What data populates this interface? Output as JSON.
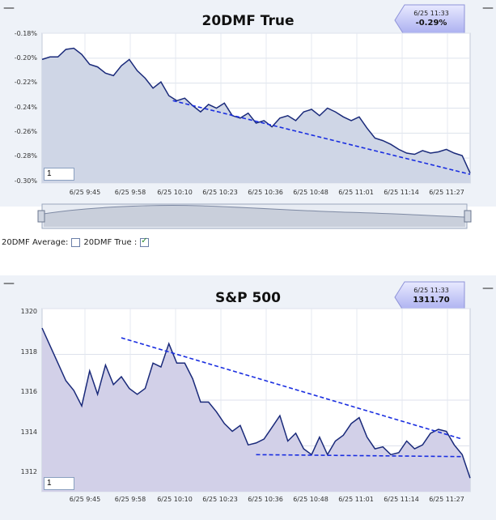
{
  "charts": [
    {
      "title": "20DMF True",
      "callout_time": "6/25 11:33",
      "callout_value": "-0.29%",
      "input_value": "1",
      "y_ticks": [
        "-0.18%",
        "-0.20%",
        "-0.22%",
        "-0.24%",
        "-0.26%",
        "-0.28%",
        "-0.30%"
      ],
      "x_ticks": [
        "6/25 9:45",
        "6/25 9:58",
        "6/25 10:10",
        "6/25 10:23",
        "6/25 10:36",
        "6/25 10:48",
        "6/25 11:01",
        "6/25 11:14",
        "6/25 11:27"
      ]
    },
    {
      "title": "S&P 500",
      "callout_time": "6/25 11:33",
      "callout_value": "1311.70",
      "input_value": "1",
      "y_ticks": [
        "1320",
        "1318",
        "1316",
        "1314",
        "1312"
      ],
      "x_ticks": [
        "6/25 9:45",
        "6/25 9:58",
        "6/25 10:10",
        "6/25 10:23",
        "6/25 10:36",
        "6/25 10:48",
        "6/25 11:01",
        "6/25 11:14",
        "6/25 11:27"
      ]
    }
  ],
  "legend": {
    "average_label": "20DMF Average:",
    "true_label": "20DMF True :",
    "average_checked": false,
    "true_checked": true
  },
  "chart_data": [
    {
      "type": "line",
      "title": "20DMF True",
      "ylim": [
        -0.3,
        -0.18
      ],
      "y_unit": "%",
      "x": [
        0,
        2,
        4,
        6,
        8,
        10,
        12,
        14,
        16,
        18,
        20,
        22,
        24,
        26,
        28,
        30,
        32,
        34,
        36,
        38,
        40,
        42,
        44,
        46,
        48,
        50,
        52,
        54,
        56,
        58,
        60,
        62,
        64,
        66,
        68,
        70,
        72,
        74,
        76,
        78,
        80,
        82,
        84,
        86,
        88,
        90,
        92,
        94,
        96,
        98,
        100,
        102,
        104,
        106,
        108
      ],
      "values": [
        -0.201,
        -0.199,
        -0.199,
        -0.193,
        -0.192,
        -0.197,
        -0.205,
        -0.207,
        -0.212,
        -0.214,
        -0.206,
        -0.201,
        -0.21,
        -0.216,
        -0.224,
        -0.219,
        -0.23,
        -0.234,
        -0.232,
        -0.238,
        -0.243,
        -0.237,
        -0.24,
        -0.236,
        -0.246,
        -0.248,
        -0.244,
        -0.252,
        -0.25,
        -0.255,
        -0.248,
        -0.246,
        -0.25,
        -0.243,
        -0.241,
        -0.246,
        -0.24,
        -0.243,
        -0.247,
        -0.25,
        -0.247,
        -0.256,
        -0.264,
        -0.266,
        -0.269,
        -0.273,
        -0.276,
        -0.277,
        -0.274,
        -0.276,
        -0.275,
        -0.273,
        -0.276,
        -0.278,
        -0.292
      ],
      "trendlines": [
        {
          "x": [
            33,
            108
          ],
          "values": [
            -0.234,
            -0.293
          ]
        }
      ]
    },
    {
      "type": "line",
      "title": "S&P 500",
      "ylim": [
        1311,
        1320.4
      ],
      "x": [
        0,
        2,
        4,
        6,
        8,
        10,
        12,
        14,
        16,
        18,
        20,
        22,
        24,
        26,
        28,
        30,
        32,
        34,
        36,
        38,
        40,
        42,
        44,
        46,
        48,
        50,
        52,
        54,
        56,
        58,
        60,
        62,
        64,
        66,
        68,
        70,
        72,
        74,
        76,
        78,
        80,
        82,
        84,
        86,
        88,
        90,
        92,
        94,
        96,
        98,
        100,
        102,
        104,
        106,
        108
      ],
      "values": [
        1319.4,
        1318.5,
        1317.6,
        1316.7,
        1316.2,
        1315.4,
        1317.2,
        1316.0,
        1317.5,
        1316.5,
        1316.9,
        1316.3,
        1316.0,
        1316.3,
        1317.6,
        1317.4,
        1318.6,
        1317.6,
        1317.6,
        1316.8,
        1315.6,
        1315.6,
        1315.1,
        1314.5,
        1314.1,
        1314.4,
        1313.4,
        1313.5,
        1313.7,
        1314.3,
        1314.9,
        1313.6,
        1314.0,
        1313.2,
        1312.9,
        1313.8,
        1312.9,
        1313.6,
        1313.9,
        1314.5,
        1314.8,
        1313.8,
        1313.2,
        1313.3,
        1312.9,
        1313.0,
        1313.6,
        1313.2,
        1313.4,
        1314.0,
        1314.2,
        1314.1,
        1313.4,
        1312.9,
        1311.7
      ],
      "trendlines": [
        {
          "x": [
            20,
            106
          ],
          "values": [
            1318.9,
            1313.7
          ]
        },
        {
          "x": [
            54,
            106
          ],
          "values": [
            1312.9,
            1312.8
          ]
        }
      ]
    }
  ]
}
